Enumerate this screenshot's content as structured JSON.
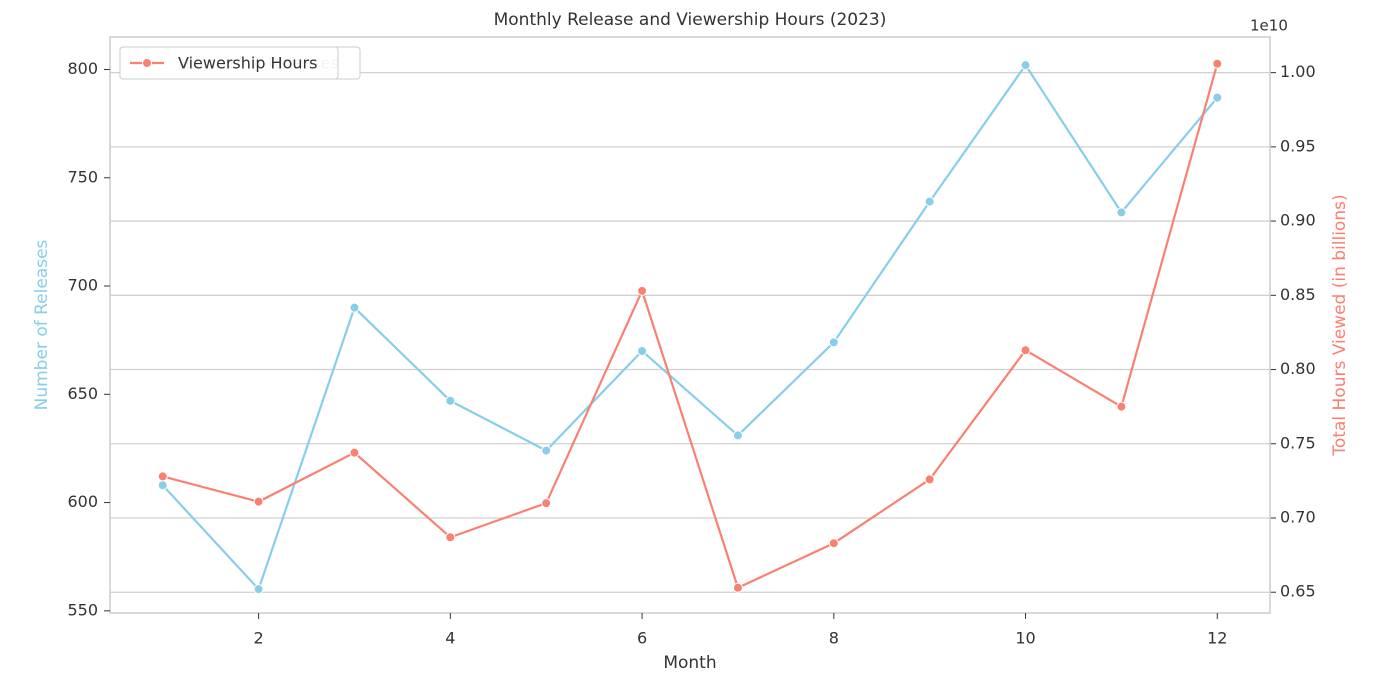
{
  "chart_data": {
    "type": "line",
    "title": "Monthly Release and Viewership Hours (2023)",
    "x_label": "Month",
    "y_label": "Number of Releases",
    "y2_label": "Total Hours Viewed (in billions)",
    "y2_offset_label": "1e10",
    "x": [
      1,
      2,
      3,
      4,
      5,
      6,
      7,
      8,
      9,
      10,
      11,
      12
    ],
    "series": [
      {
        "name": "Number of Releases",
        "color": "#87ceeb",
        "axis": "y",
        "values": [
          608,
          560,
          690,
          647,
          624,
          670,
          631,
          674,
          739,
          802,
          734,
          787
        ]
      },
      {
        "name": "Viewership Hours",
        "color": "#fa8072",
        "axis": "y2",
        "values": [
          0.728,
          0.711,
          0.744,
          0.687,
          0.71,
          0.853,
          0.653,
          0.683,
          0.726,
          0.813,
          0.775,
          1.006
        ]
      }
    ],
    "xlim": [
      0.45,
      12.55
    ],
    "xticks": [
      2,
      4,
      6,
      8,
      10,
      12
    ],
    "ylim": [
      549,
      815
    ],
    "yticks": [
      550,
      600,
      650,
      700,
      750,
      800
    ],
    "y2lim": [
      0.636,
      1.024
    ],
    "y2ticks": [
      {
        "value": 0.65,
        "label": "0.65"
      },
      {
        "value": 0.7,
        "label": "0.70"
      },
      {
        "value": 0.75,
        "label": "0.75"
      },
      {
        "value": 0.8,
        "label": "0.80"
      },
      {
        "value": 0.85,
        "label": "0.85"
      },
      {
        "value": 0.9,
        "label": "0.90"
      },
      {
        "value": 0.95,
        "label": "0.95"
      },
      {
        "value": 1.0,
        "label": "1.00"
      }
    ],
    "grid": true,
    "legend": "upper left"
  }
}
